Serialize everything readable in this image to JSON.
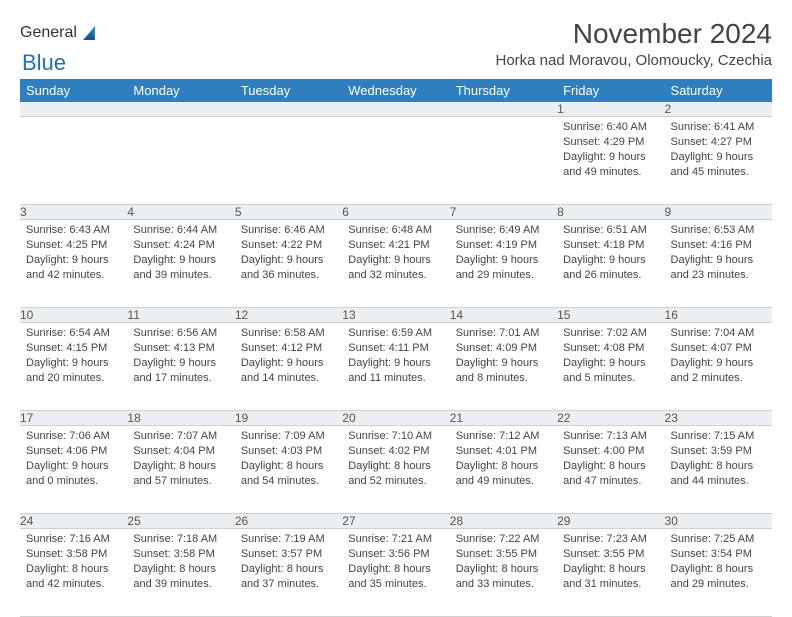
{
  "logo": {
    "text1": "General",
    "text2": "Blue"
  },
  "title": "November 2024",
  "location": "Horka nad Moravou, Olomoucky, Czechia",
  "colors": {
    "header_bg": "#2f7fbf",
    "header_text": "#ffffff",
    "daynum_bg": "#eceff1",
    "sep_line": "#2f7fbf",
    "logo_gray": "#5a5a5a",
    "logo_blue": "#2171b5"
  },
  "weekdays": [
    "Sunday",
    "Monday",
    "Tuesday",
    "Wednesday",
    "Thursday",
    "Friday",
    "Saturday"
  ],
  "weeks": [
    [
      {
        "n": "",
        "lines": []
      },
      {
        "n": "",
        "lines": []
      },
      {
        "n": "",
        "lines": []
      },
      {
        "n": "",
        "lines": []
      },
      {
        "n": "",
        "lines": []
      },
      {
        "n": "1",
        "lines": [
          "Sunrise: 6:40 AM",
          "Sunset: 4:29 PM",
          "Daylight: 9 hours",
          "and 49 minutes."
        ]
      },
      {
        "n": "2",
        "lines": [
          "Sunrise: 6:41 AM",
          "Sunset: 4:27 PM",
          "Daylight: 9 hours",
          "and 45 minutes."
        ]
      }
    ],
    [
      {
        "n": "3",
        "lines": [
          "Sunrise: 6:43 AM",
          "Sunset: 4:25 PM",
          "Daylight: 9 hours",
          "and 42 minutes."
        ]
      },
      {
        "n": "4",
        "lines": [
          "Sunrise: 6:44 AM",
          "Sunset: 4:24 PM",
          "Daylight: 9 hours",
          "and 39 minutes."
        ]
      },
      {
        "n": "5",
        "lines": [
          "Sunrise: 6:46 AM",
          "Sunset: 4:22 PM",
          "Daylight: 9 hours",
          "and 36 minutes."
        ]
      },
      {
        "n": "6",
        "lines": [
          "Sunrise: 6:48 AM",
          "Sunset: 4:21 PM",
          "Daylight: 9 hours",
          "and 32 minutes."
        ]
      },
      {
        "n": "7",
        "lines": [
          "Sunrise: 6:49 AM",
          "Sunset: 4:19 PM",
          "Daylight: 9 hours",
          "and 29 minutes."
        ]
      },
      {
        "n": "8",
        "lines": [
          "Sunrise: 6:51 AM",
          "Sunset: 4:18 PM",
          "Daylight: 9 hours",
          "and 26 minutes."
        ]
      },
      {
        "n": "9",
        "lines": [
          "Sunrise: 6:53 AM",
          "Sunset: 4:16 PM",
          "Daylight: 9 hours",
          "and 23 minutes."
        ]
      }
    ],
    [
      {
        "n": "10",
        "lines": [
          "Sunrise: 6:54 AM",
          "Sunset: 4:15 PM",
          "Daylight: 9 hours",
          "and 20 minutes."
        ]
      },
      {
        "n": "11",
        "lines": [
          "Sunrise: 6:56 AM",
          "Sunset: 4:13 PM",
          "Daylight: 9 hours",
          "and 17 minutes."
        ]
      },
      {
        "n": "12",
        "lines": [
          "Sunrise: 6:58 AM",
          "Sunset: 4:12 PM",
          "Daylight: 9 hours",
          "and 14 minutes."
        ]
      },
      {
        "n": "13",
        "lines": [
          "Sunrise: 6:59 AM",
          "Sunset: 4:11 PM",
          "Daylight: 9 hours",
          "and 11 minutes."
        ]
      },
      {
        "n": "14",
        "lines": [
          "Sunrise: 7:01 AM",
          "Sunset: 4:09 PM",
          "Daylight: 9 hours",
          "and 8 minutes."
        ]
      },
      {
        "n": "15",
        "lines": [
          "Sunrise: 7:02 AM",
          "Sunset: 4:08 PM",
          "Daylight: 9 hours",
          "and 5 minutes."
        ]
      },
      {
        "n": "16",
        "lines": [
          "Sunrise: 7:04 AM",
          "Sunset: 4:07 PM",
          "Daylight: 9 hours",
          "and 2 minutes."
        ]
      }
    ],
    [
      {
        "n": "17",
        "lines": [
          "Sunrise: 7:06 AM",
          "Sunset: 4:06 PM",
          "Daylight: 9 hours",
          "and 0 minutes."
        ]
      },
      {
        "n": "18",
        "lines": [
          "Sunrise: 7:07 AM",
          "Sunset: 4:04 PM",
          "Daylight: 8 hours",
          "and 57 minutes."
        ]
      },
      {
        "n": "19",
        "lines": [
          "Sunrise: 7:09 AM",
          "Sunset: 4:03 PM",
          "Daylight: 8 hours",
          "and 54 minutes."
        ]
      },
      {
        "n": "20",
        "lines": [
          "Sunrise: 7:10 AM",
          "Sunset: 4:02 PM",
          "Daylight: 8 hours",
          "and 52 minutes."
        ]
      },
      {
        "n": "21",
        "lines": [
          "Sunrise: 7:12 AM",
          "Sunset: 4:01 PM",
          "Daylight: 8 hours",
          "and 49 minutes."
        ]
      },
      {
        "n": "22",
        "lines": [
          "Sunrise: 7:13 AM",
          "Sunset: 4:00 PM",
          "Daylight: 8 hours",
          "and 47 minutes."
        ]
      },
      {
        "n": "23",
        "lines": [
          "Sunrise: 7:15 AM",
          "Sunset: 3:59 PM",
          "Daylight: 8 hours",
          "and 44 minutes."
        ]
      }
    ],
    [
      {
        "n": "24",
        "lines": [
          "Sunrise: 7:16 AM",
          "Sunset: 3:58 PM",
          "Daylight: 8 hours",
          "and 42 minutes."
        ]
      },
      {
        "n": "25",
        "lines": [
          "Sunrise: 7:18 AM",
          "Sunset: 3:58 PM",
          "Daylight: 8 hours",
          "and 39 minutes."
        ]
      },
      {
        "n": "26",
        "lines": [
          "Sunrise: 7:19 AM",
          "Sunset: 3:57 PM",
          "Daylight: 8 hours",
          "and 37 minutes."
        ]
      },
      {
        "n": "27",
        "lines": [
          "Sunrise: 7:21 AM",
          "Sunset: 3:56 PM",
          "Daylight: 8 hours",
          "and 35 minutes."
        ]
      },
      {
        "n": "28",
        "lines": [
          "Sunrise: 7:22 AM",
          "Sunset: 3:55 PM",
          "Daylight: 8 hours",
          "and 33 minutes."
        ]
      },
      {
        "n": "29",
        "lines": [
          "Sunrise: 7:23 AM",
          "Sunset: 3:55 PM",
          "Daylight: 8 hours",
          "and 31 minutes."
        ]
      },
      {
        "n": "30",
        "lines": [
          "Sunrise: 7:25 AM",
          "Sunset: 3:54 PM",
          "Daylight: 8 hours",
          "and 29 minutes."
        ]
      }
    ]
  ]
}
